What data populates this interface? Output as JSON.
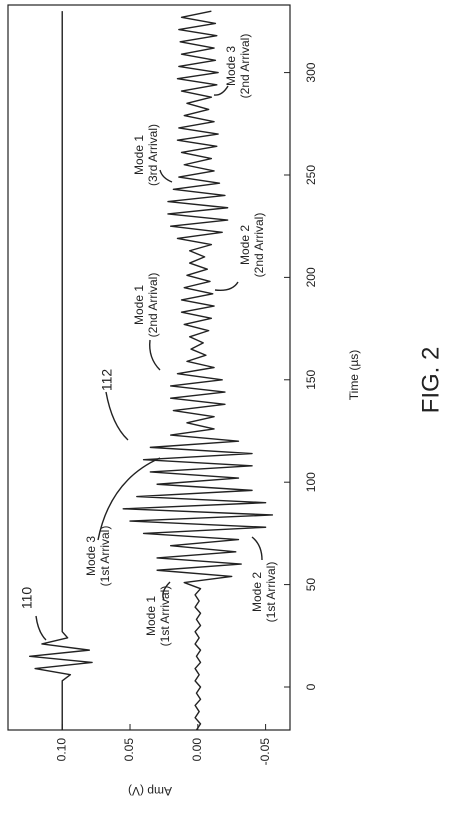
{
  "chart_data": {
    "type": "line",
    "x_label": "Time (µs)",
    "y_label": "Amp (V)",
    "figure_label": "FIG. 2",
    "xlim": [
      -21,
      333
    ],
    "ylim": [
      -0.068,
      0.14
    ],
    "xticks": [
      0,
      50,
      100,
      150,
      200,
      250,
      300
    ],
    "yticks": [
      {
        "value": -0.05,
        "label": "-0.05"
      },
      {
        "value": 0,
        "label": "0.00"
      },
      {
        "value": 0.05,
        "label": "0.05"
      },
      {
        "value": 0.1,
        "label": "0.10"
      }
    ],
    "x": [
      -21,
      -18,
      -15,
      -12,
      -9,
      -6,
      -3,
      0,
      3,
      6,
      9,
      12,
      15,
      18,
      21,
      24,
      27,
      30,
      33,
      36,
      39,
      42,
      45,
      48,
      51,
      54,
      57,
      60,
      63,
      66,
      69,
      72,
      75,
      78,
      81,
      84,
      87,
      90,
      93,
      96,
      99,
      102,
      105,
      108,
      111,
      114,
      117,
      120,
      123,
      126,
      129,
      132,
      135,
      138,
      141,
      144,
      147,
      150,
      153,
      156,
      159,
      162,
      165,
      168,
      171,
      174,
      177,
      180,
      183,
      186,
      189,
      192,
      195,
      198,
      201,
      204,
      207,
      210,
      213,
      216,
      219,
      222,
      225,
      228,
      231,
      234,
      237,
      240,
      243,
      246,
      249,
      252,
      255,
      258,
      261,
      264,
      267,
      270,
      273,
      276,
      279,
      282,
      285,
      288,
      291,
      294,
      297,
      300,
      303,
      306,
      309,
      312,
      315,
      318,
      321,
      324,
      327,
      330
    ],
    "series": [
      {
        "color": "#222222",
        "values": [
          0.1,
          0.1,
          0.1,
          0.1,
          0.1,
          0.1,
          0.1,
          0.1,
          0.1,
          0.094,
          0.12,
          0.078,
          0.124,
          0.08,
          0.115,
          0.096,
          0.1,
          0.1,
          0.1,
          0.1,
          0.1,
          0.1,
          0.1,
          0.1,
          0.1,
          0.1,
          0.1,
          0.1,
          0.1,
          0.1,
          0.1,
          0.1,
          0.1,
          0.1,
          0.1,
          0.1,
          0.1,
          0.1,
          0.1,
          0.1,
          0.1,
          0.1,
          0.1,
          0.1,
          0.1,
          0.1,
          0.1,
          0.1,
          0.1,
          0.1,
          0.1,
          0.1,
          0.1,
          0.1,
          0.1,
          0.1,
          0.1,
          0.1,
          0.1,
          0.1,
          0.1,
          0.1,
          0.1,
          0.1,
          0.1,
          0.1,
          0.1,
          0.1,
          0.1,
          0.1,
          0.1,
          0.1,
          0.1,
          0.1,
          0.1,
          0.1,
          0.1,
          0.1,
          0.1,
          0.1,
          0.1,
          0.1,
          0.1,
          0.1,
          0.1,
          0.1,
          0.1,
          0.1,
          0.1,
          0.1,
          0.1,
          0.1,
          0.1,
          0.1,
          0.1,
          0.1,
          0.1,
          0.1,
          0.1,
          0.1,
          0.1,
          0.1,
          0.1,
          0.1,
          0.1,
          0.1,
          0.1,
          0.1,
          0.1,
          0.1,
          0.1,
          0.1,
          0.1,
          0.1,
          0.1,
          0.1,
          0.1,
          0.1
        ]
      },
      {
        "color": "#222222",
        "values": [
          0.001,
          -0.002,
          0.002,
          -0.001,
          0.002,
          -0.002,
          0.001,
          -0.002,
          0.002,
          -0.001,
          0.002,
          -0.002,
          0.001,
          -0.002,
          0.002,
          -0.001,
          0.002,
          -0.002,
          0.001,
          -0.002,
          0.002,
          -0.001,
          0.002,
          -0.002,
          0.01,
          -0.025,
          0.03,
          -0.032,
          0.03,
          -0.028,
          0.02,
          -0.03,
          0.04,
          -0.05,
          0.05,
          -0.055,
          0.055,
          -0.05,
          0.045,
          -0.04,
          0.03,
          -0.03,
          0.035,
          -0.04,
          0.04,
          -0.04,
          0.035,
          -0.03,
          0.02,
          -0.012,
          0.008,
          -0.012,
          0.018,
          -0.02,
          0.02,
          -0.02,
          0.02,
          -0.018,
          0.015,
          -0.012,
          0.008,
          -0.006,
          0.005,
          -0.004,
          0.006,
          -0.008,
          0.01,
          -0.01,
          0.012,
          -0.012,
          0.012,
          -0.011,
          0.01,
          -0.009,
          0.008,
          -0.007,
          0.006,
          -0.005,
          0.006,
          -0.01,
          0.015,
          -0.018,
          0.02,
          -0.022,
          0.022,
          -0.022,
          0.022,
          -0.02,
          0.018,
          -0.016,
          0.014,
          -0.012,
          0.01,
          -0.01,
          0.012,
          -0.014,
          0.015,
          -0.015,
          0.014,
          -0.012,
          0.01,
          -0.008,
          0.008,
          -0.01,
          0.012,
          -0.014,
          0.015,
          -0.015,
          0.014,
          -0.013,
          0.012,
          -0.012,
          0.013,
          -0.014,
          0.014,
          -0.013,
          0.012,
          -0.01
        ]
      }
    ],
    "annotations": [
      {
        "lines": [
          "110"
        ]
      },
      {
        "lines": [
          "112"
        ]
      },
      {
        "lines": [
          "Mode 1",
          "(1st Arrival)"
        ]
      },
      {
        "lines": [
          "Mode 3",
          "(1st Arrival)"
        ]
      },
      {
        "lines": [
          "Mode 2",
          "(1st Arrival)"
        ]
      },
      {
        "lines": [
          "Mode 1",
          "(2nd Arrival)"
        ]
      },
      {
        "lines": [
          "Mode 2",
          "(2nd Arrival)"
        ]
      },
      {
        "lines": [
          "Mode 1",
          "(3rd Arrival)"
        ]
      },
      {
        "lines": [
          "Mode 3",
          "(2nd Arrival)"
        ]
      }
    ]
  }
}
